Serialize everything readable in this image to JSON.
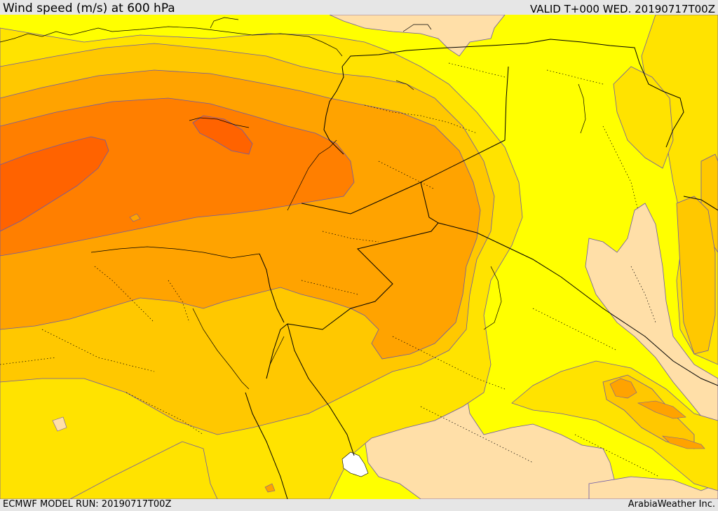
{
  "header": {
    "title": "Wind speed (m/s) at 600 hPa",
    "valid": "VALID T+000 WED. 20190717T00Z"
  },
  "footer": {
    "model_run": "ECMWF MODEL RUN: 20190717T00Z",
    "provider": "ArabiaWeather Inc."
  },
  "colors": {
    "background_field": "#ffff00",
    "band_calm": "#ffdfa8",
    "band_1": "#ffe300",
    "band_2": "#ffc800",
    "band_3": "#ffa300",
    "band_4": "#ff7f00",
    "band_5": "#ff6300",
    "sea_white": "#ffffff",
    "contour_line": "#6d5aa8",
    "border_line": "#000000"
  },
  "legend": {
    "note": ""
  }
}
